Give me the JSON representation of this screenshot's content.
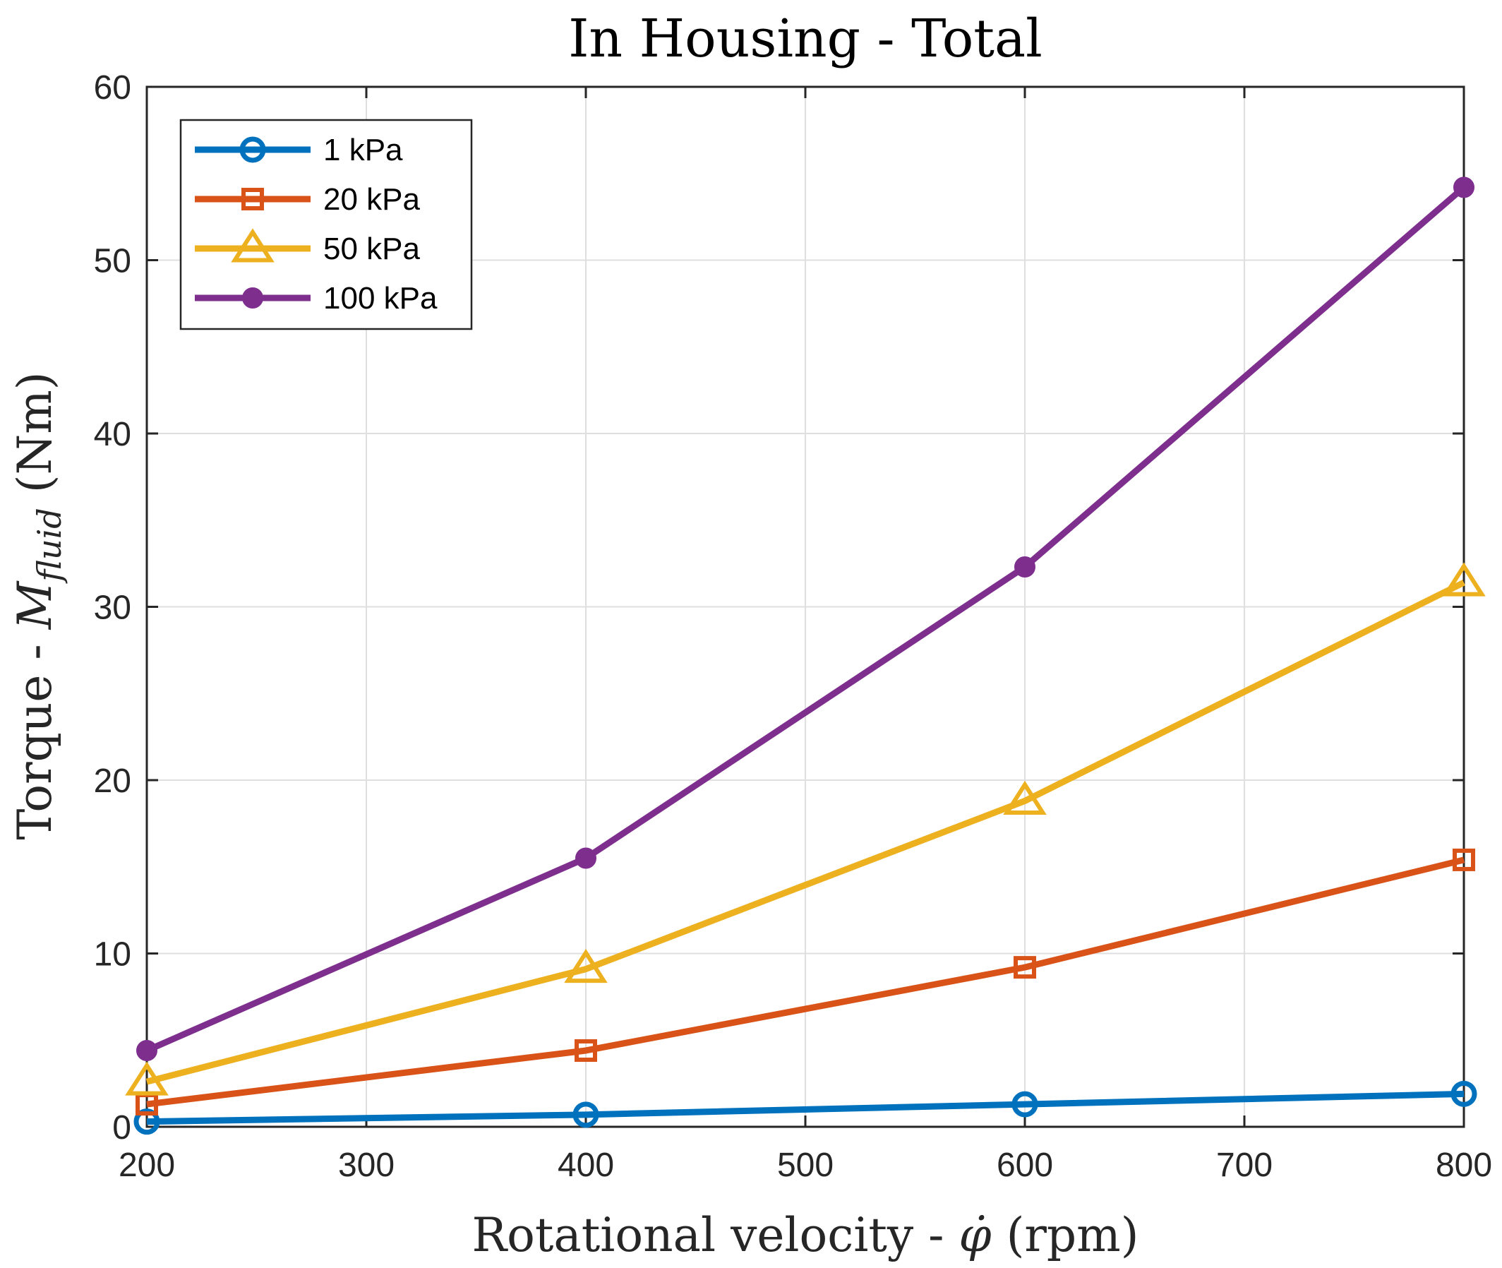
{
  "chart_data": {
    "type": "line",
    "title": "In Housing - Total",
    "xlabel_parts": [
      "Rotational velocity - ",
      "φ̇",
      " (rpm)"
    ],
    "ylabel_parts": [
      "Torque - ",
      "M",
      "fluid",
      " (Nm)"
    ],
    "x": [
      200,
      400,
      600,
      800
    ],
    "xlim": [
      200,
      800
    ],
    "ylim": [
      0,
      60
    ],
    "xticks": [
      200,
      300,
      400,
      500,
      600,
      700,
      800
    ],
    "yticks": [
      0,
      10,
      20,
      30,
      40,
      50,
      60
    ],
    "grid": true,
    "legend_position": "top-left",
    "series": [
      {
        "name": "1 kPa",
        "color": "#0072BD",
        "marker": "circle",
        "values": [
          0.3,
          0.7,
          1.3,
          1.9
        ]
      },
      {
        "name": "20 kPa",
        "color": "#D95319",
        "marker": "square",
        "values": [
          1.3,
          4.4,
          9.2,
          15.4
        ]
      },
      {
        "name": "50 kPa",
        "color": "#EDB120",
        "marker": "triangle",
        "values": [
          2.6,
          9.1,
          18.8,
          31.4
        ]
      },
      {
        "name": "100 kPa",
        "color": "#7E2F8E",
        "marker": "dot",
        "values": [
          4.4,
          15.5,
          32.3,
          54.2
        ]
      }
    ]
  }
}
